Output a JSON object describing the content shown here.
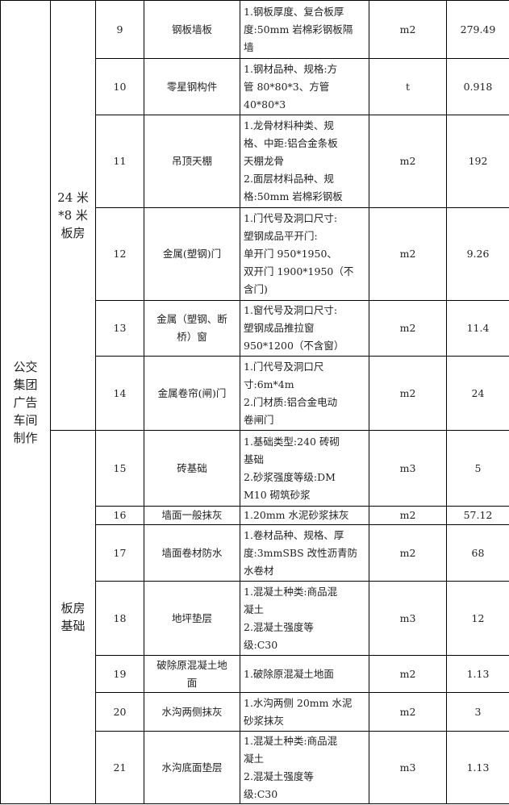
{
  "groups": {
    "project": "公交\n集团\n广告\n车间\n制作",
    "section1": "24 米\n*8 米\n板房",
    "section2": "板房\n基础"
  },
  "rows": [
    {
      "no": "9",
      "name": "钢板墙板",
      "desc": "1.钢板厚度、复合板厚\n度:50mm 岩棉彩钢板隔\n墙",
      "unit": "m2",
      "qty": "279.49"
    },
    {
      "no": "10",
      "name": "零星钢构件",
      "desc": "1.钢材品种、规格:方\n管 80*80*3、方管\n40*80*3",
      "unit": "t",
      "qty": "0.918"
    },
    {
      "no": "11",
      "name": "吊顶天棚",
      "desc": "1.龙骨材料种类、规\n格、中距:铝合金条板\n天棚龙骨\n2.面层材料品种、规\n格:50mm 岩棉彩钢板",
      "unit": "m2",
      "qty": "192"
    },
    {
      "no": "12",
      "name": "金属(塑钢)门",
      "desc": "1.门代号及洞口尺寸:\n塑钢成品平开门:\n单开门 950*1950、\n双开门 1900*1950（不\n含门)",
      "unit": "m2",
      "qty": "9.26"
    },
    {
      "no": "13",
      "name": "金属（塑钢、断\n桥）窗",
      "desc": "1.窗代号及洞口尺寸:\n塑钢成品推拉窗\n950*1200（不含窗）",
      "unit": "m2",
      "qty": "11.4"
    },
    {
      "no": "14",
      "name": "金属卷帘(闸)门",
      "desc": "1.门代号及洞口尺\n寸:6m*4m\n2.门材质:铝合金电动\n卷闸门",
      "unit": "m2",
      "qty": "24"
    },
    {
      "no": "15",
      "name": "砖基础",
      "desc": "1.基础类型:240 砖砌\n基础\n2.砂浆强度等级:DM\nM10 砌筑砂浆",
      "unit": "m3",
      "qty": "5"
    },
    {
      "no": "16",
      "name": "墙面一般抹灰",
      "desc": "1.20mm 水泥砂浆抹灰",
      "unit": "m2",
      "qty": "57.12"
    },
    {
      "no": "17",
      "name": "墙面卷材防水",
      "desc": "1.卷材品种、规格、厚\n度:3mmSBS 改性沥青防\n水卷材",
      "unit": "m2",
      "qty": "68"
    },
    {
      "no": "18",
      "name": "地坪垫层",
      "desc": "1.混凝土种类:商品混\n凝土\n2.混凝土强度等\n级:C30",
      "unit": "m3",
      "qty": "12"
    },
    {
      "no": "19",
      "name": "破除原混凝土地\n面",
      "desc": "1.破除原混凝土地面",
      "unit": "m2",
      "qty": "1.13"
    },
    {
      "no": "20",
      "name": "水沟两侧抹灰",
      "desc": "1.水沟两侧 20mm 水泥\n砂浆抹灰",
      "unit": "m2",
      "qty": "3"
    },
    {
      "no": "21",
      "name": "水沟底面垫层",
      "desc": "1.混凝土种类:商品混\n凝土\n2.混凝土强度等\n级:C30",
      "unit": "m3",
      "qty": "1.13"
    }
  ]
}
